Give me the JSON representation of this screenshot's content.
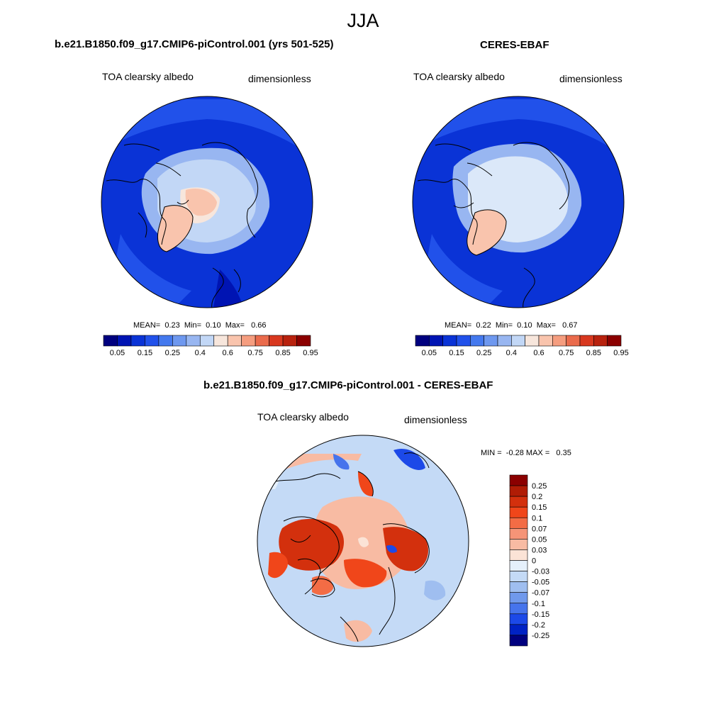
{
  "title": "JJA",
  "colors": {
    "abs_scale": [
      "#00007f",
      "#0014b3",
      "#0a33d6",
      "#2151ea",
      "#4479ee",
      "#6e98ef",
      "#98b6f1",
      "#c2d7f6",
      "#f7e6dc",
      "#f9c4ad",
      "#f59d7f",
      "#ea6b4c",
      "#d8381f",
      "#b8220e",
      "#8b0000"
    ],
    "diff_scale": [
      "#8b0000",
      "#b01c05",
      "#d3300d",
      "#f0461a",
      "#f36c45",
      "#f59477",
      "#f8bba3",
      "#fbe3d6",
      "#e5f0fb",
      "#c4daf6",
      "#9fbef0",
      "#7099ec",
      "#4674ec",
      "#1c49e8",
      "#0022c4",
      "#00007f"
    ],
    "land_outline": "#000000",
    "ice_abs_model": "#c8dcf6",
    "ice_abs_obs": "#dbe8f9",
    "ocean_abs": "#0a33d6"
  },
  "panels": {
    "model": {
      "title": "b.e21.B1850.f09_g17.CMIP6-piControl.001 (yrs 501-525)",
      "variable": "TOA clearsky albedo",
      "units": "dimensionless",
      "stats": {
        "mean_label": "MEAN=",
        "mean": "0.23",
        "min_label": "Min=",
        "min": "0.10",
        "max_label": "Max=",
        "max": "0.66"
      }
    },
    "obs": {
      "title": "CERES-EBAF",
      "variable": "TOA clearsky albedo",
      "units": "dimensionless",
      "stats": {
        "mean_label": "MEAN=",
        "mean": "0.22",
        "min_label": "Min=",
        "min": "0.10",
        "max_label": "Max=",
        "max": "0.67"
      }
    },
    "diff": {
      "title": "b.e21.B1850.f09_g17.CMIP6-piControl.001 - CERES-EBAF",
      "variable": "TOA clearsky albedo",
      "units": "dimensionless",
      "stats": {
        "min_label": "MIN =",
        "min": "-0.28",
        "max_label": "MAX =",
        "max": "0.35"
      }
    }
  },
  "abs_colorbar_ticks": [
    "0.05",
    "0.15",
    "0.25",
    "0.4",
    "0.6",
    "0.75",
    "0.85",
    "0.95"
  ],
  "diff_colorbar_ticks": [
    "0.25",
    "0.2",
    "0.15",
    "0.1",
    "0.07",
    "0.05",
    "0.03",
    "0",
    "-0.03",
    "-0.05",
    "-0.07",
    "-0.1",
    "-0.15",
    "-0.2",
    "-0.25"
  ]
}
